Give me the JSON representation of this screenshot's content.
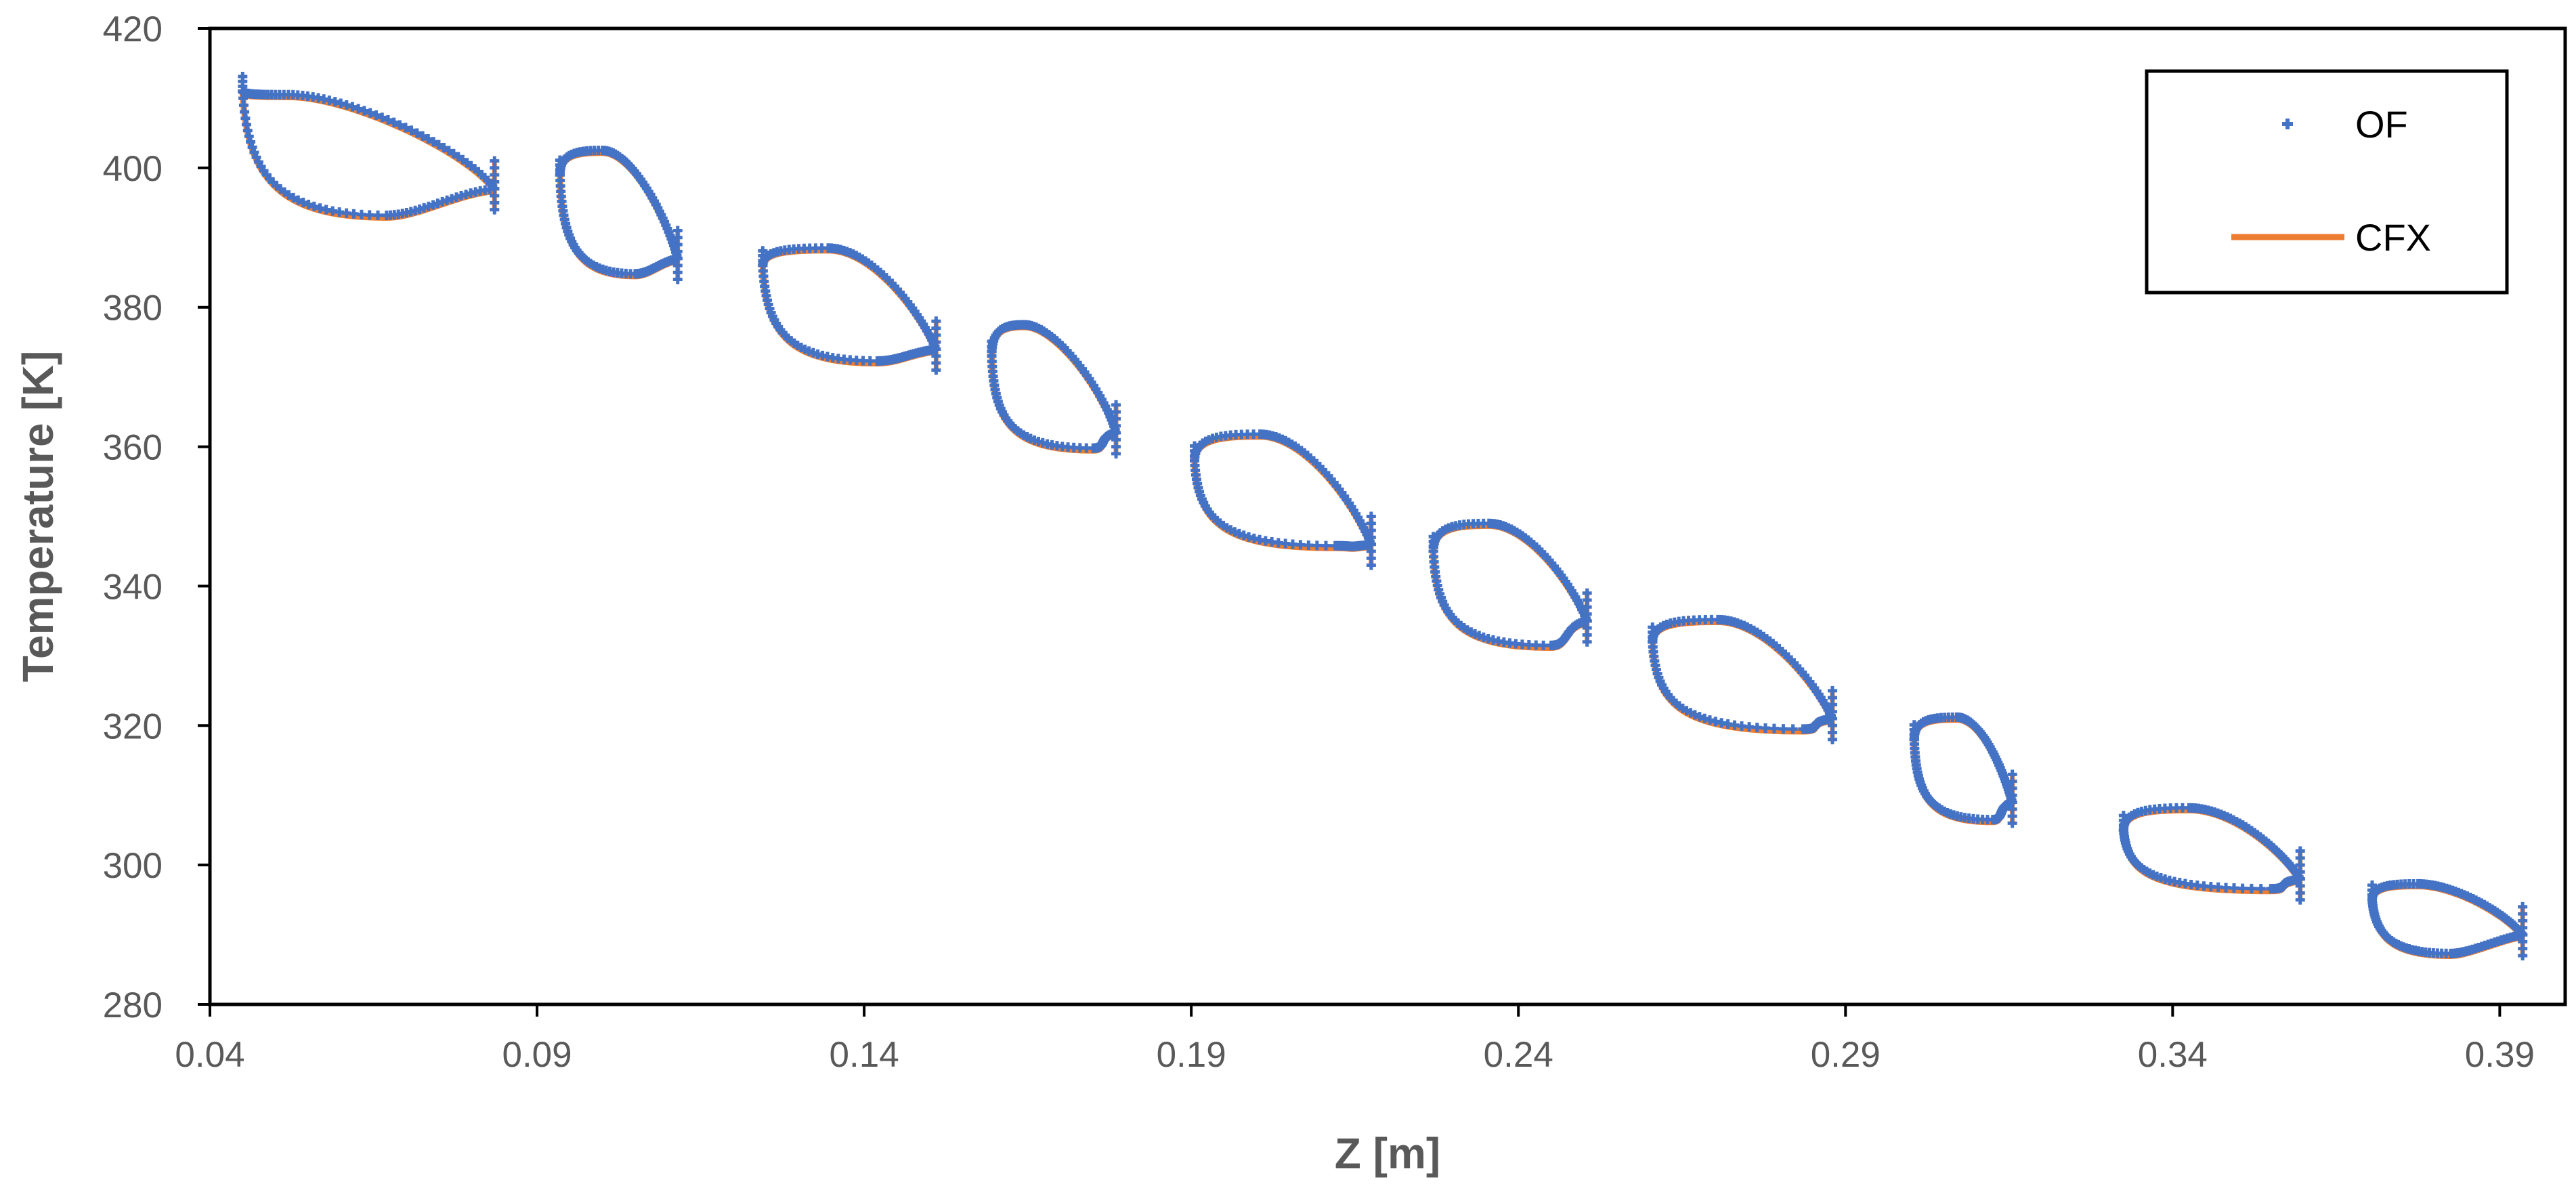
{
  "chart_data": {
    "type": "scatter",
    "title": "",
    "xlabel": "Z [m]",
    "ylabel": "Temperature [K]",
    "xlim": [
      0.04,
      0.4
    ],
    "ylim": [
      280,
      420
    ],
    "x_ticks": [
      "0.04",
      "0.09",
      "0.14",
      "0.19",
      "0.24",
      "0.29",
      "0.34",
      "0.39"
    ],
    "y_ticks": [
      "280",
      "300",
      "320",
      "340",
      "360",
      "380",
      "400",
      "420"
    ],
    "grid": false,
    "legend_position": "top-right",
    "blades": [
      {
        "le": [
          0.045,
          411.0
        ],
        "te": [
          0.0835,
          397.0
        ],
        "upper_peak": [
          0.052,
          410.5
        ],
        "lower_trough": [
          0.067,
          393.2
        ]
      },
      {
        "le": [
          0.0935,
          399.0
        ],
        "te": [
          0.1115,
          387.0
        ],
        "upper_peak": [
          0.1,
          402.5
        ],
        "lower_trough": [
          0.105,
          384.8
        ]
      },
      {
        "le": [
          0.1245,
          386.0
        ],
        "te": [
          0.151,
          374.0
        ],
        "upper_peak": [
          0.1345,
          388.5
        ],
        "lower_trough": [
          0.142,
          372.3
        ]
      },
      {
        "le": [
          0.1595,
          373.0
        ],
        "te": [
          0.1785,
          362.0
        ],
        "upper_peak": [
          0.1645,
          377.5
        ],
        "lower_trough": [
          0.175,
          359.8
        ]
      },
      {
        "le": [
          0.1905,
          358.0
        ],
        "te": [
          0.2175,
          346.0
        ],
        "upper_peak": [
          0.2005,
          361.8
        ],
        "lower_trough": [
          0.212,
          345.8
        ]
      },
      {
        "le": [
          0.227,
          345.0
        ],
        "te": [
          0.2505,
          335.0
        ],
        "upper_peak": [
          0.2355,
          349.0
        ],
        "lower_trough": [
          0.245,
          331.5
        ]
      },
      {
        "le": [
          0.2605,
          332.0
        ],
        "te": [
          0.288,
          321.0
        ],
        "upper_peak": [
          0.2705,
          335.2
        ],
        "lower_trough": [
          0.2835,
          319.5
        ]
      },
      {
        "le": [
          0.3005,
          318.0
        ],
        "te": [
          0.3155,
          309.0
        ],
        "upper_peak": [
          0.307,
          321.2
        ],
        "lower_trough": [
          0.3125,
          306.5
        ]
      },
      {
        "le": [
          0.3325,
          305.0
        ],
        "te": [
          0.3595,
          298.0
        ],
        "upper_peak": [
          0.3425,
          308.2
        ],
        "lower_trough": [
          0.355,
          296.6
        ]
      },
      {
        "le": [
          0.3705,
          295.0
        ],
        "te": [
          0.3935,
          290.0
        ],
        "upper_peak": [
          0.3775,
          297.3
        ],
        "lower_trough": [
          0.3825,
          287.3
        ]
      }
    ],
    "series": [
      {
        "name": "OF",
        "marker": "plus",
        "color": "#4472C4"
      },
      {
        "name": "CFX",
        "line": "solid",
        "color": "#ED7D31"
      }
    ]
  }
}
